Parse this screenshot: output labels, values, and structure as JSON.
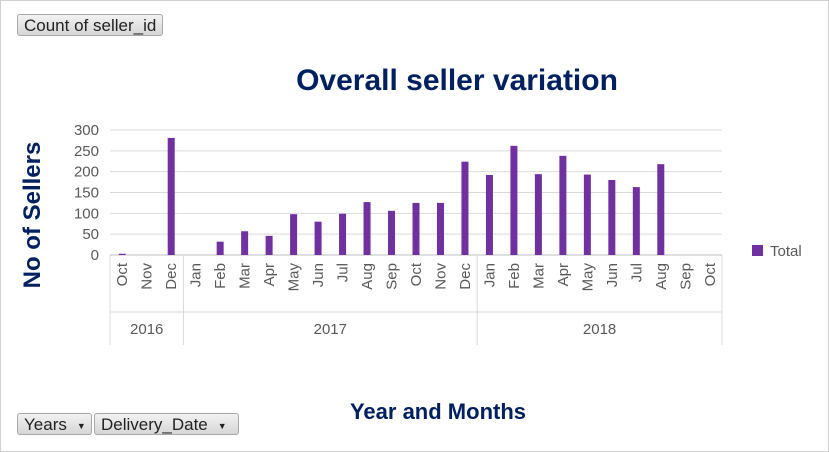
{
  "field_buttons": {
    "value_field": "Count of seller_id",
    "axis_fields": [
      "Years",
      "Delivery_Date"
    ]
  },
  "colors": {
    "bar": "#7030a0",
    "title": "#002060",
    "grid": "#d9d9d9",
    "axis_text": "#595959"
  },
  "chart_data": {
    "type": "bar",
    "title": "Overall seller variation",
    "xlabel": "Year and Months",
    "ylabel": "No of Sellers",
    "ylim": [
      0,
      300
    ],
    "yticks": [
      0,
      50,
      100,
      150,
      200,
      250,
      300
    ],
    "grid": true,
    "legend_position": "right",
    "groups": [
      {
        "label": "2016",
        "categories": [
          "Oct",
          "Nov",
          "Dec"
        ]
      },
      {
        "label": "2017",
        "categories": [
          "Jan",
          "Feb",
          "Mar",
          "Apr",
          "May",
          "Jun",
          "Jul",
          "Aug",
          "Sep",
          "Oct",
          "Nov",
          "Dec"
        ]
      },
      {
        "label": "2018",
        "categories": [
          "Jan",
          "Feb",
          "Mar",
          "Apr",
          "May",
          "Jun",
          "Jul",
          "Aug",
          "Sep",
          "Oct"
        ]
      }
    ],
    "series": [
      {
        "name": "Total",
        "values": [
          3,
          0,
          281,
          0,
          32,
          57,
          46,
          98,
          80,
          99,
          127,
          106,
          125,
          125,
          224,
          192,
          262,
          194,
          238,
          193,
          180,
          163,
          218,
          0,
          0
        ]
      }
    ]
  }
}
